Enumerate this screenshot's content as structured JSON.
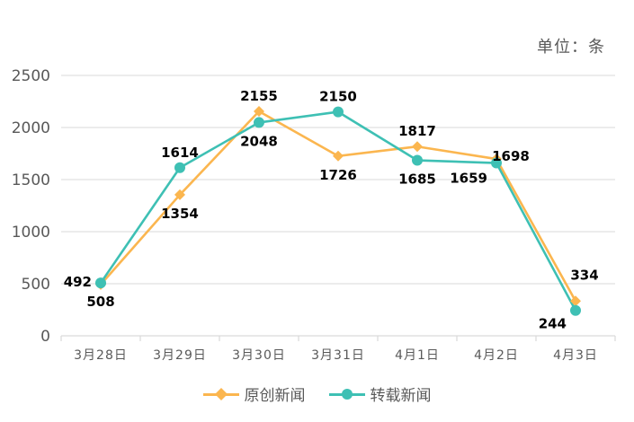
{
  "unit_label": "单位：条",
  "colors": {
    "original": "#FBB64F",
    "reprint": "#3EC0B4",
    "axis": "#D9D9D9",
    "grid": "#D9D9D9",
    "tick_text": "#595959"
  },
  "chart_data": {
    "type": "line",
    "categories": [
      "3月28日",
      "3月29日",
      "3月30日",
      "3月31日",
      "4月1日",
      "4月2日",
      "4月3日"
    ],
    "ylim": [
      0,
      2500
    ],
    "y_ticks": [
      0,
      500,
      1000,
      1500,
      2000,
      2500
    ],
    "grid": true,
    "legend_position": "bottom",
    "series": [
      {
        "name": "原创新闻",
        "marker": "diamond",
        "values": [
          492,
          1354,
          2155,
          1726,
          1817,
          1698,
          334
        ]
      },
      {
        "name": "转载新闻",
        "marker": "circle",
        "values": [
          508,
          1614,
          2048,
          2150,
          1685,
          1659,
          244
        ]
      }
    ]
  }
}
